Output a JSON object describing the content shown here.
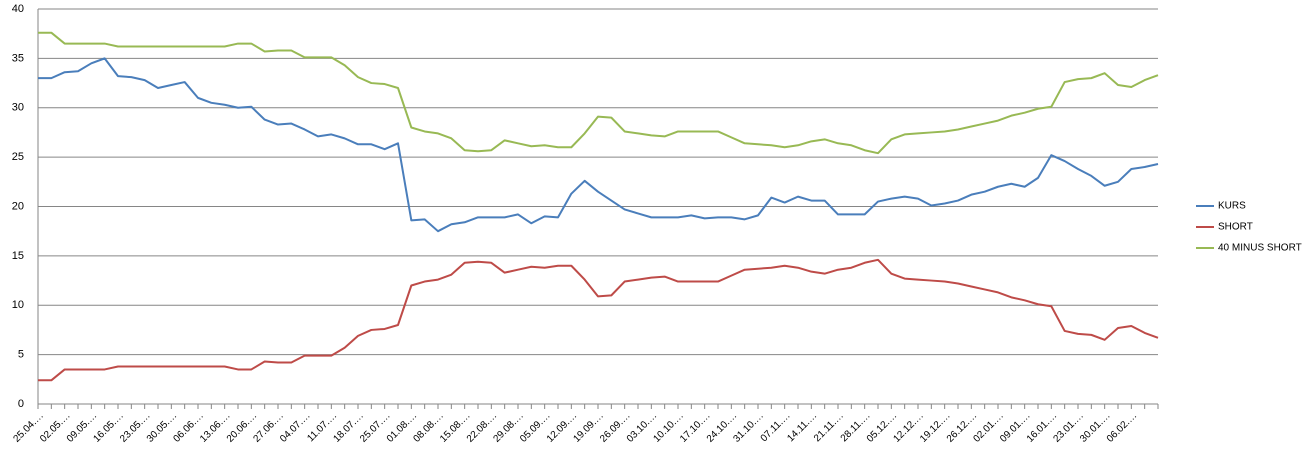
{
  "chart_data": {
    "type": "line",
    "categories": [
      "25.04.…",
      null,
      "02.05.…",
      null,
      "09.05.…",
      null,
      "16.05.…",
      null,
      "23.05.…",
      null,
      "30.05.…",
      null,
      "06.06.…",
      null,
      "13.06.…",
      null,
      "20.06.…",
      null,
      "27.06.…",
      null,
      "04.07.…",
      null,
      "11.07.…",
      null,
      "18.07.…",
      null,
      "25.07.…",
      null,
      "01.08.…",
      null,
      "08.08.…",
      null,
      "15.08.…",
      null,
      "22.08.…",
      null,
      "29.08.…",
      null,
      "05.09.…",
      null,
      "12.09.…",
      null,
      "19.09.…",
      null,
      "26.09.…",
      null,
      "03.10.…",
      null,
      "10.10.…",
      null,
      "17.10.…",
      null,
      "24.10.…",
      null,
      "31.10.…",
      null,
      "07.11.…",
      null,
      "14.11.…",
      null,
      "21.11.…",
      null,
      "28.11.…",
      null,
      "05.12.…",
      null,
      "12.12.…",
      null,
      "19.12.…",
      null,
      "26.12.…",
      null,
      "02.01.…",
      null,
      "09.01.…",
      null,
      "16.01.…",
      null,
      "23.01.…",
      null,
      "30.01.…",
      null,
      "06.02.…",
      null,
      null
    ],
    "series": [
      {
        "name": "KURS",
        "color": "#4a7ebb",
        "values": [
          33,
          33,
          33.6,
          33.7,
          34.5,
          35,
          33.2,
          33.1,
          32.8,
          32,
          32.3,
          32.6,
          31,
          30.5,
          30.3,
          30,
          30.1,
          28.8,
          28.3,
          28.4,
          27.8,
          27.1,
          27.3,
          26.9,
          26.3,
          26.3,
          25.8,
          26.4,
          18.6,
          18.7,
          17.5,
          18.2,
          18.4,
          18.9,
          18.9,
          18.9,
          19.2,
          18.3,
          19,
          18.9,
          21.3,
          22.6,
          21.5,
          20.6,
          19.7,
          19.3,
          18.9,
          18.9,
          18.9,
          19.1,
          18.8,
          18.9,
          18.9,
          18.7,
          19.1,
          20.9,
          20.4,
          21,
          20.6,
          20.6,
          19.2,
          19.2,
          19.2,
          20.5,
          20.8,
          21,
          20.8,
          20.1,
          20.3,
          20.6,
          21.2,
          21.5,
          22,
          22.3,
          22,
          22.9,
          25.2,
          24.6,
          23.8,
          23.1,
          22.1,
          22.5,
          23.8,
          24,
          24.3
        ]
      },
      {
        "name": "SHORT",
        "color": "#be4b48",
        "values": [
          2.4,
          2.4,
          3.5,
          3.5,
          3.5,
          3.5,
          3.8,
          3.8,
          3.8,
          3.8,
          3.8,
          3.8,
          3.8,
          3.8,
          3.8,
          3.5,
          3.5,
          4.3,
          4.2,
          4.2,
          4.9,
          4.9,
          4.9,
          5.7,
          6.9,
          7.5,
          7.6,
          8,
          12,
          12.4,
          12.6,
          13.1,
          14.3,
          14.4,
          14.3,
          13.3,
          13.6,
          13.9,
          13.8,
          14,
          14,
          12.6,
          10.9,
          11,
          12.4,
          12.6,
          12.8,
          12.9,
          12.4,
          12.4,
          12.4,
          12.4,
          13,
          13.6,
          13.7,
          13.8,
          14,
          13.8,
          13.4,
          13.2,
          13.6,
          13.8,
          14.3,
          14.6,
          13.2,
          12.7,
          12.6,
          12.5,
          12.4,
          12.2,
          11.9,
          11.6,
          11.3,
          10.8,
          10.5,
          10.1,
          9.9,
          7.4,
          7.1,
          7,
          6.5,
          7.7,
          7.9,
          7.2,
          6.7
        ]
      },
      {
        "name": "40 MINUS SHORT",
        "color": "#98b954",
        "values": [
          37.6,
          37.6,
          36.5,
          36.5,
          36.5,
          36.5,
          36.2,
          36.2,
          36.2,
          36.2,
          36.2,
          36.2,
          36.2,
          36.2,
          36.2,
          36.5,
          36.5,
          35.7,
          35.8,
          35.8,
          35.1,
          35.1,
          35.1,
          34.3,
          33.1,
          32.5,
          32.4,
          32,
          28,
          27.6,
          27.4,
          26.9,
          25.7,
          25.6,
          25.7,
          26.7,
          26.4,
          26.1,
          26.2,
          26,
          26,
          27.4,
          29.1,
          29,
          27.6,
          27.4,
          27.2,
          27.1,
          27.6,
          27.6,
          27.6,
          27.6,
          27,
          26.4,
          26.3,
          26.2,
          26,
          26.2,
          26.6,
          26.8,
          26.4,
          26.2,
          25.7,
          25.4,
          26.8,
          27.3,
          27.4,
          27.5,
          27.6,
          27.8,
          28.1,
          28.4,
          28.7,
          29.2,
          29.5,
          29.9,
          30.1,
          32.6,
          32.9,
          33,
          33.5,
          32.3,
          32.1,
          32.8,
          33.3
        ]
      }
    ],
    "ylim": [
      0,
      40
    ],
    "yticks": [
      0,
      5,
      10,
      15,
      20,
      25,
      30,
      35,
      40
    ],
    "grid": true,
    "legend": "right"
  }
}
